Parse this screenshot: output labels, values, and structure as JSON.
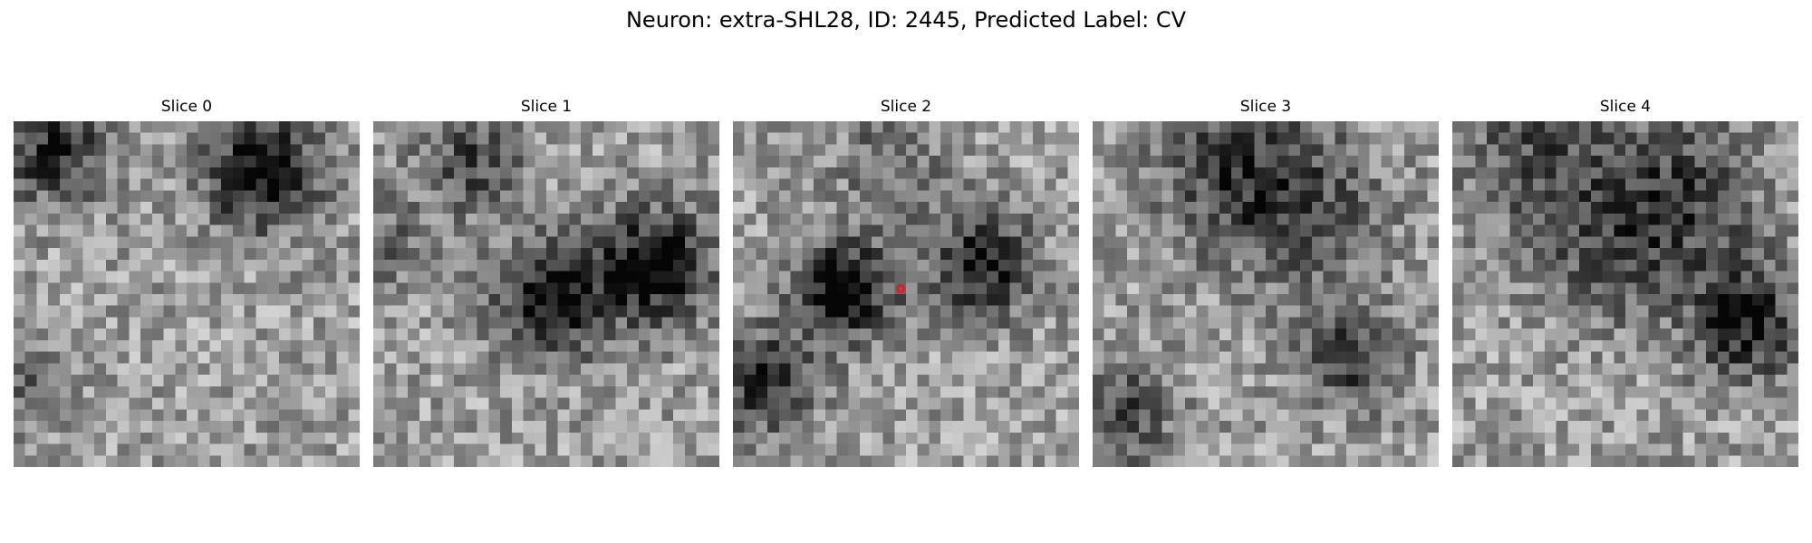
{
  "figure": {
    "title": "Neuron: extra-SHL28, ID: 2445, Predicted Label: CV"
  },
  "panels": [
    {
      "title": "Slice 0",
      "seed": 11,
      "blobs": [
        [
          3,
          2,
          3.2,
          0.75
        ],
        [
          21,
          4,
          3.4,
          1.0
        ],
        [
          1,
          22,
          3,
          0.35
        ]
      ],
      "marker": null
    },
    {
      "title": "Slice 1",
      "seed": 23,
      "blobs": [
        [
          8,
          3,
          3.2,
          0.55
        ],
        [
          15,
          15,
          3.4,
          0.95
        ],
        [
          24,
          12,
          3.4,
          1.0
        ],
        [
          0,
          10,
          3,
          0.35
        ]
      ],
      "marker": null
    },
    {
      "title": "Slice 2",
      "seed": 37,
      "blobs": [
        [
          9,
          14,
          3.2,
          0.95
        ],
        [
          21,
          12,
          3.2,
          0.85
        ],
        [
          2,
          22,
          3,
          0.75
        ],
        [
          13,
          3,
          3.4,
          0.35
        ]
      ],
      "marker": {
        "col": 15,
        "row": 15,
        "color": "#e8191c"
      }
    },
    {
      "title": "Slice 3",
      "seed": 51,
      "blobs": [
        [
          12,
          3,
          5,
          0.55
        ],
        [
          18,
          8,
          5,
          0.45
        ],
        [
          22,
          20,
          3,
          0.65
        ],
        [
          2,
          25,
          3.2,
          0.6
        ]
      ],
      "marker": null
    },
    {
      "title": "Slice 4",
      "seed": 67,
      "blobs": [
        [
          7,
          3,
          5,
          0.5
        ],
        [
          19,
          6,
          5,
          0.6
        ],
        [
          25,
          17,
          3.4,
          0.85
        ],
        [
          13,
          12,
          4,
          0.35
        ]
      ],
      "marker": null
    }
  ]
}
